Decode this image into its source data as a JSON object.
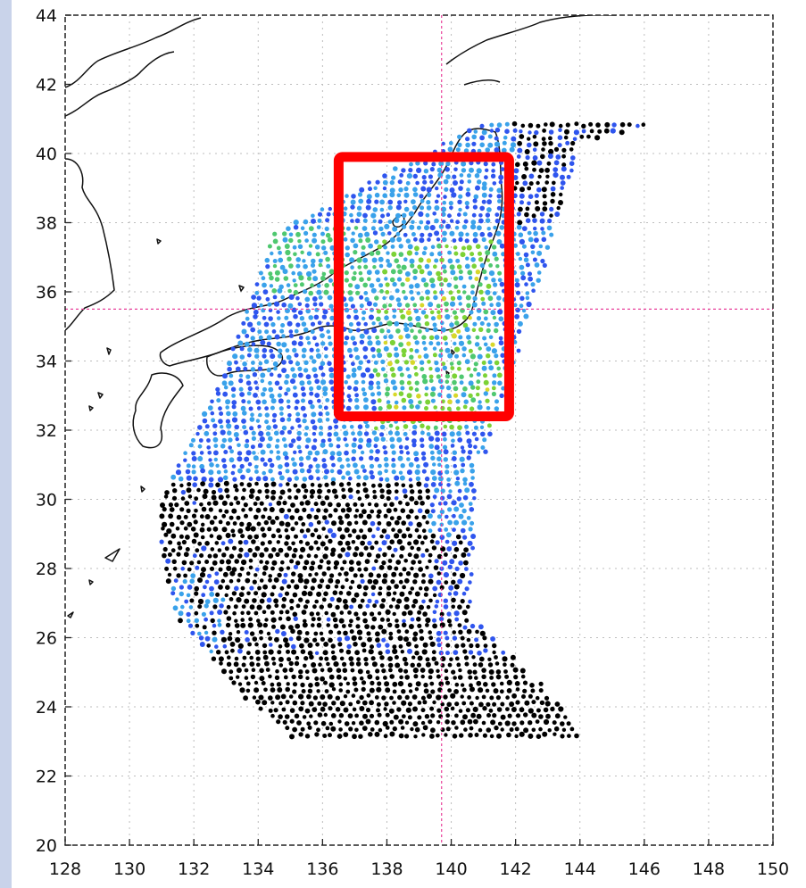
{
  "title": "",
  "x_ticks": [
    "128",
    "130",
    "132",
    "134",
    "136",
    "138",
    "140",
    "142",
    "144",
    "146",
    "148",
    "150"
  ],
  "y_ticks": [
    "20",
    "22",
    "24",
    "26",
    "28",
    "30",
    "32",
    "34",
    "36",
    "38",
    "40",
    "42",
    "44"
  ],
  "axes": {
    "lon_range": [
      128,
      150
    ],
    "lat_range": [
      20,
      44
    ],
    "grid": true
  },
  "crosshair": {
    "lon": 139.7,
    "lat": 35.5,
    "color": "#e8409a"
  },
  "highlight_box": {
    "lon_range": [
      136.5,
      141.8
    ],
    "lat_range": [
      32.4,
      39.9
    ],
    "color": "#ff0000"
  },
  "colors": {
    "black": "#000000",
    "blue": "#2f55ee",
    "lightblue": "#3aa2ea",
    "green": "#4fc870",
    "lime": "#7cd236",
    "yellow": "#d7d72a",
    "coast": "#111111"
  }
}
